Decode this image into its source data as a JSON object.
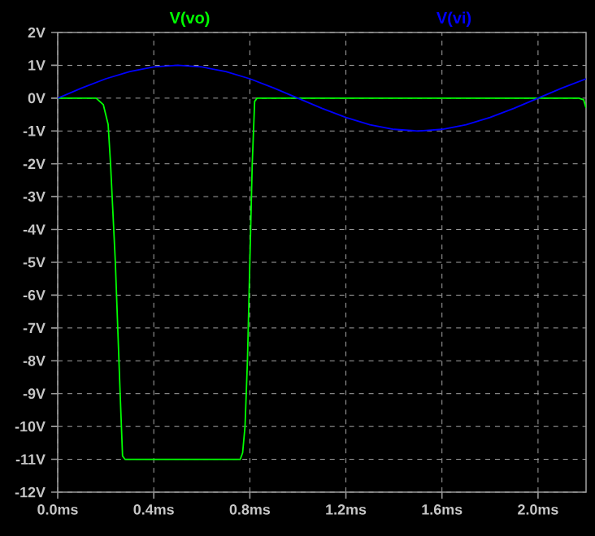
{
  "chart_data": {
    "type": "line",
    "xlim": [
      0,
      2.2
    ],
    "ylim": [
      -12,
      2
    ],
    "xticks": [
      {
        "value": 0,
        "label": "0.0ms"
      },
      {
        "value": 0.4,
        "label": "0.4ms"
      },
      {
        "value": 0.8,
        "label": "0.8ms"
      },
      {
        "value": 1.2,
        "label": "1.2ms"
      },
      {
        "value": 1.6,
        "label": "1.6ms"
      },
      {
        "value": 2.0,
        "label": "2.0ms"
      }
    ],
    "yticks": [
      {
        "value": 2,
        "label": "2V"
      },
      {
        "value": 1,
        "label": "1V"
      },
      {
        "value": 0,
        "label": "0V"
      },
      {
        "value": -1,
        "label": "-1V"
      },
      {
        "value": -2,
        "label": "-2V"
      },
      {
        "value": -3,
        "label": "-3V"
      },
      {
        "value": -4,
        "label": "-4V"
      },
      {
        "value": -5,
        "label": "-5V"
      },
      {
        "value": -6,
        "label": "-6V"
      },
      {
        "value": -7,
        "label": "-7V"
      },
      {
        "value": -8,
        "label": "-8V"
      },
      {
        "value": -9,
        "label": "-9V"
      },
      {
        "value": -10,
        "label": "-10V"
      },
      {
        "value": -11,
        "label": "-11V"
      },
      {
        "value": -12,
        "label": "-12V"
      }
    ],
    "grid": true,
    "series": [
      {
        "name": "V(vo)",
        "color": "#00ff00",
        "x": [
          0,
          0.16,
          0.19,
          0.21,
          0.22,
          0.24,
          0.26,
          0.27,
          0.28,
          0.3,
          0.76,
          0.77,
          0.78,
          0.79,
          0.8,
          0.81,
          0.82,
          0.83,
          2.17,
          2.19,
          2.2
        ],
        "values": [
          0,
          0,
          -0.2,
          -0.8,
          -2,
          -5,
          -9,
          -10.9,
          -11,
          -11,
          -11,
          -10.8,
          -10,
          -8,
          -5,
          -2,
          -0.1,
          0,
          0,
          -0.05,
          -0.3
        ]
      },
      {
        "name": "V(vi)",
        "color": "#0000ff",
        "x": [
          0,
          0.1,
          0.2,
          0.3,
          0.4,
          0.5,
          0.6,
          0.7,
          0.8,
          0.9,
          1.0,
          1.1,
          1.2,
          1.3,
          1.4,
          1.5,
          1.6,
          1.7,
          1.8,
          1.9,
          2.0,
          2.1,
          2.2
        ],
        "values": [
          0,
          0.31,
          0.59,
          0.81,
          0.95,
          1,
          0.95,
          0.81,
          0.59,
          0.31,
          0,
          -0.31,
          -0.59,
          -0.81,
          -0.95,
          -1,
          -0.95,
          -0.81,
          -0.59,
          -0.31,
          0,
          0.31,
          0.59
        ]
      }
    ]
  }
}
